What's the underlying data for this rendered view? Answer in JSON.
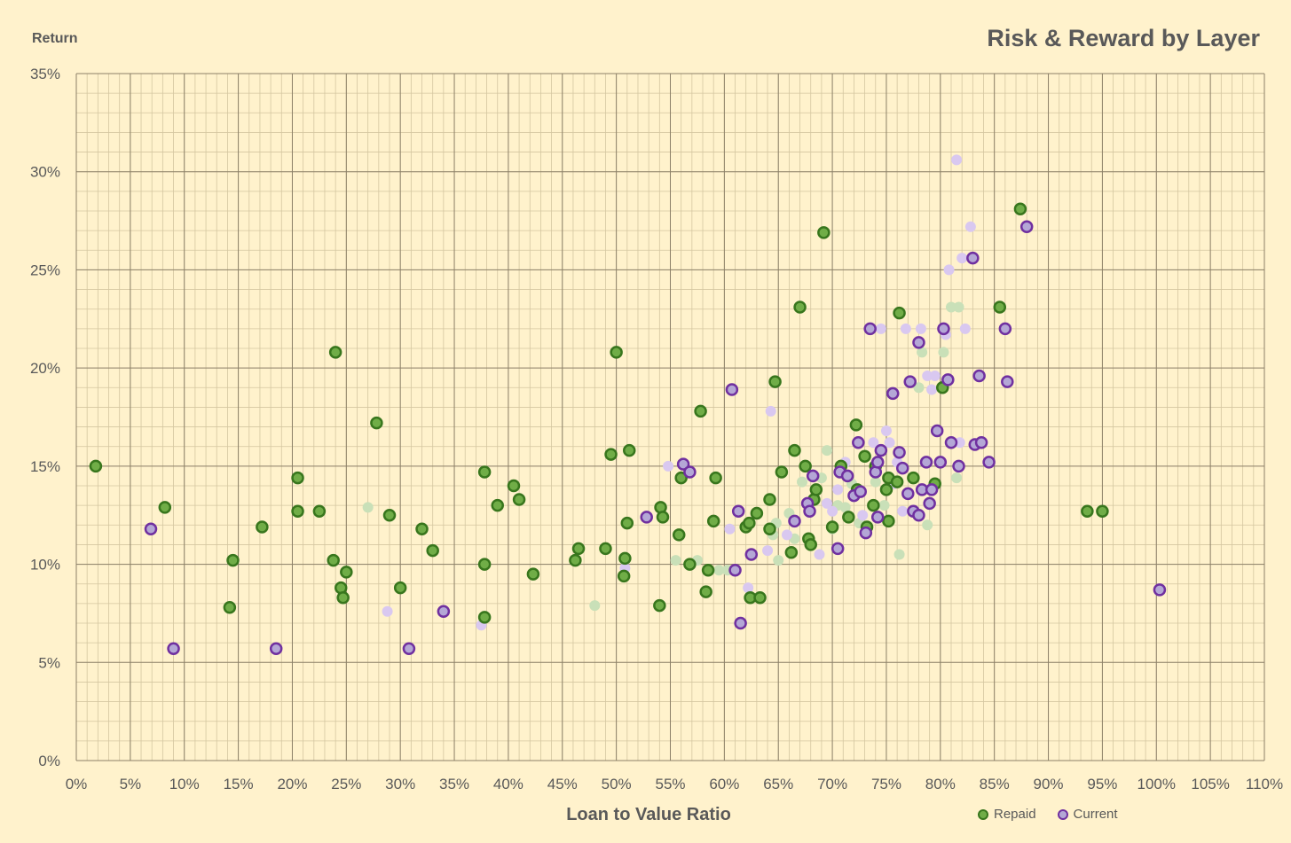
{
  "chart_data": {
    "type": "scatter",
    "title": "Risk & Reward by Layer",
    "xlabel": "Loan to Value Ratio",
    "ylabel": "Return",
    "xlim": [
      0,
      1.1
    ],
    "ylim": [
      0,
      0.35
    ],
    "x_ticks": [
      "0%",
      "5%",
      "10%",
      "15%",
      "20%",
      "25%",
      "30%",
      "35%",
      "40%",
      "45%",
      "50%",
      "55%",
      "60%",
      "65%",
      "70%",
      "75%",
      "80%",
      "85%",
      "90%",
      "95%",
      "100%",
      "105%",
      "110%"
    ],
    "y_ticks": [
      "0%",
      "5%",
      "10%",
      "15%",
      "20%",
      "25%",
      "30%",
      "35%"
    ],
    "grid": true,
    "legend": "bottom-right",
    "series": [
      {
        "name": "Repaid",
        "color": "#70ad47",
        "edge": "#38761d",
        "points": [
          [
            0.018,
            0.15
          ],
          [
            0.082,
            0.129
          ],
          [
            0.145,
            0.102
          ],
          [
            0.142,
            0.078
          ],
          [
            0.172,
            0.119
          ],
          [
            0.205,
            0.144
          ],
          [
            0.205,
            0.127
          ],
          [
            0.225,
            0.127
          ],
          [
            0.238,
            0.102
          ],
          [
            0.24,
            0.208
          ],
          [
            0.245,
            0.088
          ],
          [
            0.247,
            0.083
          ],
          [
            0.25,
            0.096
          ],
          [
            0.278,
            0.172
          ],
          [
            0.29,
            0.125
          ],
          [
            0.3,
            0.088
          ],
          [
            0.32,
            0.118
          ],
          [
            0.33,
            0.107
          ],
          [
            0.378,
            0.147
          ],
          [
            0.378,
            0.1
          ],
          [
            0.378,
            0.073
          ],
          [
            0.39,
            0.13
          ],
          [
            0.405,
            0.14
          ],
          [
            0.41,
            0.133
          ],
          [
            0.423,
            0.095
          ],
          [
            0.462,
            0.102
          ],
          [
            0.465,
            0.108
          ],
          [
            0.49,
            0.108
          ],
          [
            0.495,
            0.156
          ],
          [
            0.5,
            0.208
          ],
          [
            0.507,
            0.094
          ],
          [
            0.508,
            0.103
          ],
          [
            0.51,
            0.121
          ],
          [
            0.512,
            0.158
          ],
          [
            0.54,
            0.079
          ],
          [
            0.541,
            0.129
          ],
          [
            0.543,
            0.124
          ],
          [
            0.558,
            0.115
          ],
          [
            0.56,
            0.144
          ],
          [
            0.568,
            0.1
          ],
          [
            0.578,
            0.178
          ],
          [
            0.583,
            0.086
          ],
          [
            0.585,
            0.097
          ],
          [
            0.59,
            0.122
          ],
          [
            0.592,
            0.144
          ],
          [
            0.62,
            0.119
          ],
          [
            0.623,
            0.121
          ],
          [
            0.624,
            0.083
          ],
          [
            0.63,
            0.126
          ],
          [
            0.633,
            0.083
          ],
          [
            0.642,
            0.133
          ],
          [
            0.642,
            0.118
          ],
          [
            0.647,
            0.193
          ],
          [
            0.653,
            0.147
          ],
          [
            0.662,
            0.106
          ],
          [
            0.665,
            0.158
          ],
          [
            0.67,
            0.231
          ],
          [
            0.675,
            0.15
          ],
          [
            0.678,
            0.113
          ],
          [
            0.68,
            0.11
          ],
          [
            0.683,
            0.133
          ],
          [
            0.685,
            0.138
          ],
          [
            0.692,
            0.269
          ],
          [
            0.7,
            0.119
          ],
          [
            0.708,
            0.15
          ],
          [
            0.715,
            0.124
          ],
          [
            0.722,
            0.171
          ],
          [
            0.723,
            0.138
          ],
          [
            0.73,
            0.155
          ],
          [
            0.732,
            0.119
          ],
          [
            0.738,
            0.13
          ],
          [
            0.74,
            0.15
          ],
          [
            0.75,
            0.138
          ],
          [
            0.752,
            0.144
          ],
          [
            0.752,
            0.122
          ],
          [
            0.76,
            0.142
          ],
          [
            0.762,
            0.228
          ],
          [
            0.775,
            0.144
          ],
          [
            0.795,
            0.141
          ],
          [
            0.802,
            0.19
          ],
          [
            0.855,
            0.231
          ],
          [
            0.874,
            0.281
          ],
          [
            0.936,
            0.127
          ],
          [
            0.95,
            0.127
          ]
        ]
      },
      {
        "name": "Current",
        "color": "#b4a7d6",
        "edge": "#7030a0",
        "points": [
          [
            0.069,
            0.118
          ],
          [
            0.09,
            0.057
          ],
          [
            0.185,
            0.057
          ],
          [
            0.308,
            0.057
          ],
          [
            0.34,
            0.076
          ],
          [
            0.528,
            0.124
          ],
          [
            0.562,
            0.151
          ],
          [
            0.568,
            0.147
          ],
          [
            0.607,
            0.189
          ],
          [
            0.61,
            0.097
          ],
          [
            0.613,
            0.127
          ],
          [
            0.615,
            0.07
          ],
          [
            0.625,
            0.105
          ],
          [
            0.665,
            0.122
          ],
          [
            0.677,
            0.131
          ],
          [
            0.679,
            0.127
          ],
          [
            0.682,
            0.145
          ],
          [
            0.705,
            0.108
          ],
          [
            0.707,
            0.147
          ],
          [
            0.714,
            0.145
          ],
          [
            0.72,
            0.135
          ],
          [
            0.724,
            0.162
          ],
          [
            0.726,
            0.137
          ],
          [
            0.731,
            0.116
          ],
          [
            0.735,
            0.22
          ],
          [
            0.74,
            0.147
          ],
          [
            0.742,
            0.152
          ],
          [
            0.742,
            0.124
          ],
          [
            0.745,
            0.158
          ],
          [
            0.756,
            0.187
          ],
          [
            0.762,
            0.157
          ],
          [
            0.765,
            0.149
          ],
          [
            0.77,
            0.136
          ],
          [
            0.772,
            0.193
          ],
          [
            0.775,
            0.127
          ],
          [
            0.78,
            0.213
          ],
          [
            0.78,
            0.125
          ],
          [
            0.783,
            0.138
          ],
          [
            0.787,
            0.152
          ],
          [
            0.79,
            0.131
          ],
          [
            0.792,
            0.138
          ],
          [
            0.797,
            0.168
          ],
          [
            0.8,
            0.152
          ],
          [
            0.803,
            0.22
          ],
          [
            0.807,
            0.194
          ],
          [
            0.81,
            0.162
          ],
          [
            0.817,
            0.15
          ],
          [
            0.83,
            0.256
          ],
          [
            0.832,
            0.161
          ],
          [
            0.836,
            0.196
          ],
          [
            0.838,
            0.162
          ],
          [
            0.845,
            0.152
          ],
          [
            0.86,
            0.22
          ],
          [
            0.862,
            0.193
          ],
          [
            0.88,
            0.272
          ],
          [
            1.003,
            0.087
          ]
        ]
      }
    ],
    "faded_series": [
      {
        "color": "#c9e0b8",
        "points": [
          [
            0.27,
            0.129
          ],
          [
            0.48,
            0.079
          ],
          [
            0.555,
            0.102
          ],
          [
            0.575,
            0.102
          ],
          [
            0.595,
            0.097
          ],
          [
            0.603,
            0.097
          ],
          [
            0.645,
            0.115
          ],
          [
            0.648,
            0.121
          ],
          [
            0.65,
            0.102
          ],
          [
            0.66,
            0.126
          ],
          [
            0.665,
            0.113
          ],
          [
            0.672,
            0.142
          ],
          [
            0.69,
            0.144
          ],
          [
            0.695,
            0.158
          ],
          [
            0.7,
            0.118
          ],
          [
            0.705,
            0.13
          ],
          [
            0.712,
            0.129
          ],
          [
            0.718,
            0.141
          ],
          [
            0.725,
            0.121
          ],
          [
            0.74,
            0.142
          ],
          [
            0.748,
            0.13
          ],
          [
            0.762,
            0.105
          ],
          [
            0.78,
            0.19
          ],
          [
            0.783,
            0.208
          ],
          [
            0.788,
            0.12
          ],
          [
            0.803,
            0.208
          ],
          [
            0.81,
            0.231
          ],
          [
            0.815,
            0.144
          ],
          [
            0.817,
            0.231
          ]
        ]
      },
      {
        "color": "#d9c8f0",
        "points": [
          [
            0.288,
            0.076
          ],
          [
            0.375,
            0.069
          ],
          [
            0.508,
            0.098
          ],
          [
            0.548,
            0.15
          ],
          [
            0.605,
            0.118
          ],
          [
            0.64,
            0.107
          ],
          [
            0.643,
            0.178
          ],
          [
            0.658,
            0.115
          ],
          [
            0.688,
            0.105
          ],
          [
            0.695,
            0.131
          ],
          [
            0.7,
            0.127
          ],
          [
            0.705,
            0.138
          ],
          [
            0.712,
            0.152
          ],
          [
            0.728,
            0.125
          ],
          [
            0.738,
            0.162
          ],
          [
            0.745,
            0.22
          ],
          [
            0.75,
            0.168
          ],
          [
            0.753,
            0.162
          ],
          [
            0.757,
            0.141
          ],
          [
            0.76,
            0.152
          ],
          [
            0.765,
            0.127
          ],
          [
            0.768,
            0.22
          ],
          [
            0.782,
            0.22
          ],
          [
            0.788,
            0.196
          ],
          [
            0.792,
            0.189
          ],
          [
            0.795,
            0.196
          ],
          [
            0.805,
            0.217
          ],
          [
            0.808,
            0.25
          ],
          [
            0.815,
            0.306
          ],
          [
            0.818,
            0.162
          ],
          [
            0.82,
            0.256
          ],
          [
            0.823,
            0.22
          ],
          [
            0.828,
            0.272
          ],
          [
            0.622,
            0.088
          ]
        ]
      }
    ]
  }
}
